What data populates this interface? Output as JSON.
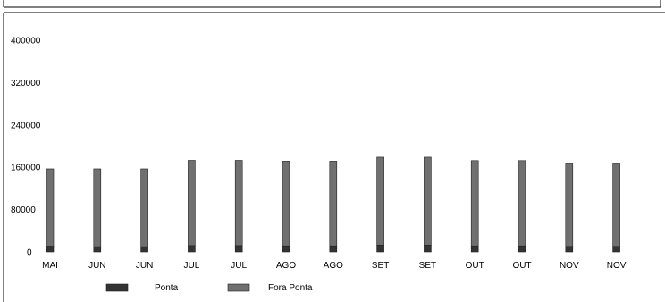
{
  "chart_data": {
    "type": "bar",
    "stacked": true,
    "categories": [
      "MAI",
      "JUN",
      "JUN",
      "JUL",
      "JUL",
      "AGO",
      "AGO",
      "SET",
      "SET",
      "OUT",
      "OUT",
      "NOV",
      "NOV"
    ],
    "series": [
      {
        "name": "Ponta",
        "color": "#333333",
        "values": [
          11000,
          10000,
          10000,
          12000,
          12000,
          11500,
          11500,
          13000,
          13000,
          11500,
          11500,
          10500,
          10500
        ]
      },
      {
        "name": "Fora Ponta",
        "color": "#707070",
        "values": [
          146000,
          147000,
          147000,
          161000,
          161000,
          160000,
          160000,
          166000,
          166000,
          161000,
          161000,
          157500,
          157500
        ]
      }
    ],
    "yticks": [
      0,
      80000,
      160000,
      240000,
      320000,
      400000
    ],
    "ylim": [
      0,
      400000
    ],
    "grid": false,
    "legend_position": "bottom"
  }
}
